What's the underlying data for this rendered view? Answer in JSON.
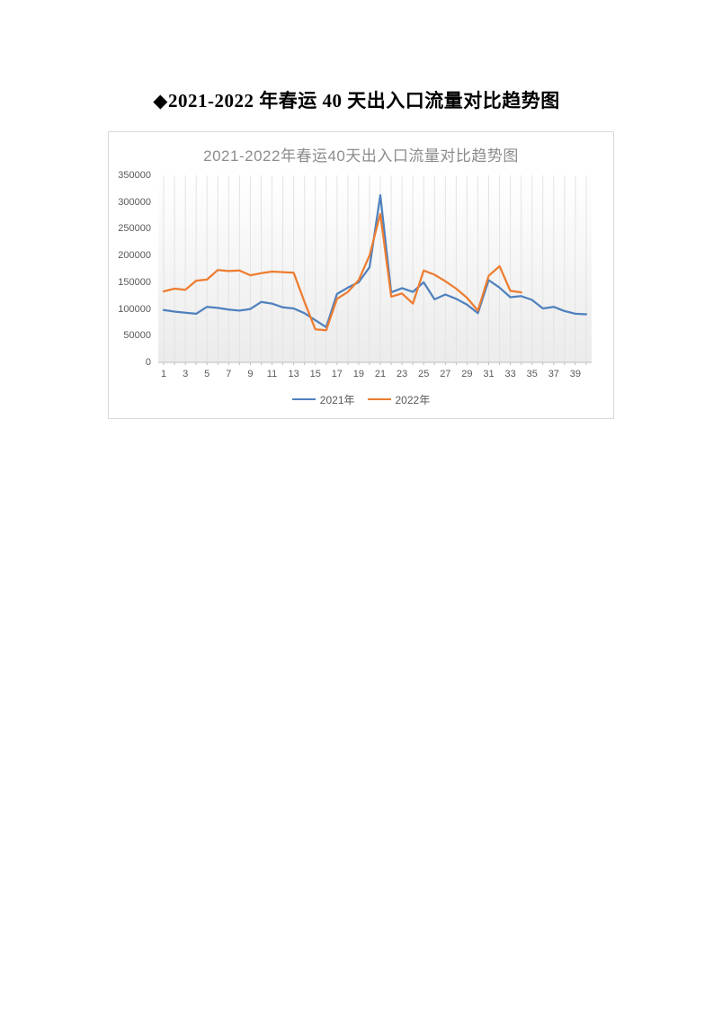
{
  "page": {
    "title": "◆2021-2022 年春运 40 天出入口流量对比趋势图"
  },
  "chart": {
    "title": "2021-2022年春运40天出入口流量对比趋势图",
    "border_color": "#d9d9d9",
    "title_color": "#8c8c8c",
    "axis_text_color": "#595959",
    "gridline_color": "#e3e3e3",
    "axis_line_color": "#bfbfbf"
  },
  "chart_data": {
    "type": "line",
    "title": "2021-2022年春运40天出入口流量对比趋势图",
    "xlabel": "",
    "ylabel": "",
    "x": [
      1,
      2,
      3,
      4,
      5,
      6,
      7,
      8,
      9,
      10,
      11,
      12,
      13,
      14,
      15,
      16,
      17,
      18,
      19,
      20,
      21,
      22,
      23,
      24,
      25,
      26,
      27,
      28,
      29,
      30,
      31,
      32,
      33,
      34,
      35,
      36,
      37,
      38,
      39,
      40
    ],
    "x_tick_labels": [
      "1",
      "3",
      "5",
      "7",
      "9",
      "11",
      "13",
      "15",
      "17",
      "19",
      "21",
      "23",
      "25",
      "27",
      "29",
      "31",
      "33",
      "35",
      "37",
      "39"
    ],
    "y_tick_labels": [
      "0",
      "50000",
      "100000",
      "150000",
      "200000",
      "250000",
      "300000",
      "350000"
    ],
    "y_ticks": [
      0,
      50000,
      100000,
      150000,
      200000,
      250000,
      300000,
      350000
    ],
    "ylim": [
      0,
      350000
    ],
    "grid": "vertical-only",
    "legend_position": "bottom",
    "series": [
      {
        "name": "2021年",
        "color": "#4F81BD",
        "values": [
          98000,
          95000,
          93000,
          91000,
          104000,
          102000,
          99000,
          97000,
          100000,
          113000,
          110000,
          103000,
          101000,
          92000,
          79000,
          66000,
          128000,
          140000,
          150000,
          178000,
          313000,
          131000,
          139000,
          132000,
          150000,
          118000,
          127000,
          119000,
          108000,
          92000,
          154000,
          140000,
          122000,
          124000,
          117000,
          101000,
          104000,
          96000,
          91000,
          90000
        ]
      },
      {
        "name": "2022年",
        "color": "#ED7D31",
        "values": [
          133000,
          138000,
          136000,
          153000,
          155000,
          173000,
          171000,
          172000,
          163000,
          167000,
          170000,
          169000,
          168000,
          113000,
          62000,
          60000,
          119000,
          132000,
          154000,
          200000,
          278000,
          123000,
          129000,
          110000,
          172000,
          164000,
          152000,
          138000,
          121000,
          97000,
          162000,
          180000,
          134000,
          131000
        ]
      }
    ]
  }
}
